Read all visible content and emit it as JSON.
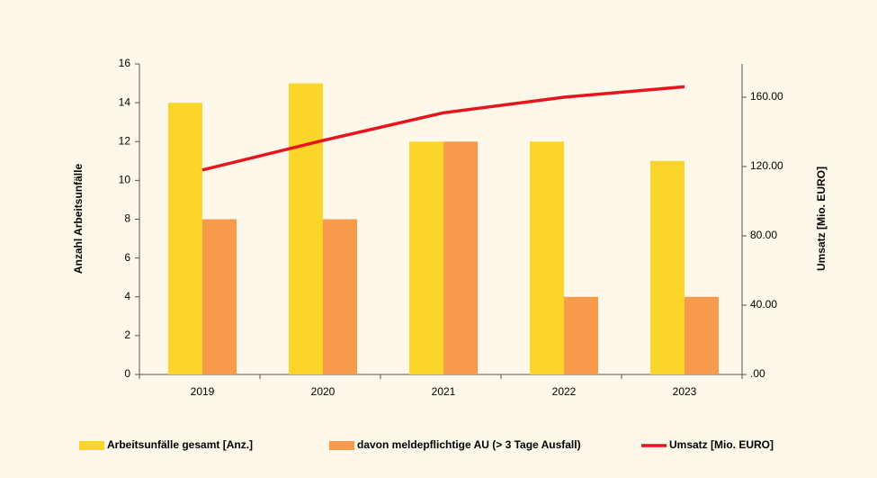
{
  "chart_data": {
    "type": "bar",
    "categories": [
      "2019",
      "2020",
      "2021",
      "2022",
      "2023"
    ],
    "series": [
      {
        "name": "Arbeitsunfälle gesamt [Anz.]",
        "color": "#fcd52b",
        "values": [
          14,
          15,
          12,
          12,
          11
        ]
      },
      {
        "name": "davon meldepflichtige AU (> 3 Tage Ausfall)",
        "color": "#f79a4b",
        "values": [
          8,
          8,
          12,
          4,
          4
        ]
      },
      {
        "name": "Umsatz [Mio. EURO]",
        "color": "#e8141c",
        "type": "line",
        "axis": "y2",
        "values": [
          118,
          135,
          151,
          160,
          166
        ]
      }
    ],
    "ylabel": "Anzahl Arbeitsunfälle",
    "y2label": "Umsatz [Mio. EURO]",
    "ylim": [
      0,
      16
    ],
    "yticks": [
      0,
      2,
      4,
      6,
      8,
      10,
      12,
      14,
      16
    ],
    "y2lim": [
      0,
      179.2
    ],
    "y2ticks": [
      {
        "value": 0,
        "label": ".00"
      },
      {
        "value": 40,
        "label": "40.00"
      },
      {
        "value": 80,
        "label": "80.00"
      },
      {
        "value": 120,
        "label": "120.00"
      },
      {
        "value": 160,
        "label": "160.00"
      }
    ],
    "legend": "bottom"
  }
}
